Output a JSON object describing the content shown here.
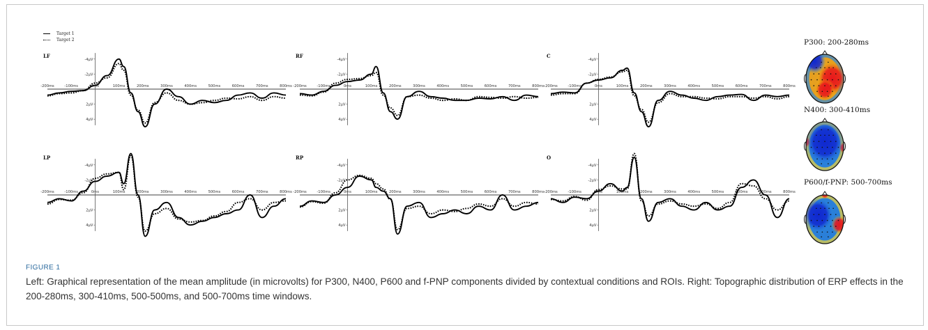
{
  "legend": {
    "entries": [
      "Target 1",
      "Target 2"
    ]
  },
  "chart_data": [
    {
      "type": "line",
      "panel": "LF",
      "x_unit": "ms",
      "xlim": [
        -200,
        800
      ],
      "y_unit": "µV",
      "ylim": [
        -4,
        4
      ],
      "y_inverted": true,
      "x_ticks": [
        "-200ms",
        "-100ms",
        "0ms",
        "100ms",
        "200ms",
        "300ms",
        "400ms",
        "500ms",
        "600ms",
        "700ms",
        "800ms"
      ],
      "y_ticks": [
        "-4µV",
        "-2µV",
        "2µV",
        "4µV"
      ],
      "x": [
        -200,
        -150,
        -100,
        -50,
        0,
        50,
        100,
        120,
        150,
        180,
        210,
        250,
        300,
        350,
        400,
        450,
        500,
        550,
        600,
        650,
        700,
        750,
        800
      ],
      "series": [
        {
          "name": "Target 1",
          "values": [
            0.8,
            0.5,
            0.3,
            0.2,
            -0.5,
            -1.8,
            -4.0,
            -3.0,
            0.5,
            3.0,
            5.0,
            2.0,
            0.0,
            1.0,
            2.0,
            1.5,
            1.8,
            1.5,
            0.8,
            0.5,
            1.2,
            0.5,
            0.8
          ]
        },
        {
          "name": "Target 2",
          "values": [
            0.9,
            0.6,
            0.5,
            0.2,
            -0.8,
            -1.5,
            -3.4,
            -2.5,
            0.8,
            2.8,
            4.5,
            1.8,
            0.5,
            1.5,
            2.0,
            1.8,
            1.5,
            1.2,
            1.3,
            1.0,
            1.5,
            1.0,
            1.2
          ]
        }
      ]
    },
    {
      "type": "line",
      "panel": "RF",
      "x_unit": "ms",
      "xlim": [
        -200,
        800
      ],
      "y_unit": "µV",
      "ylim": [
        -4,
        4
      ],
      "y_inverted": true,
      "x_ticks": [
        "-200ms",
        "-100ms",
        "0ms",
        "100ms",
        "200ms",
        "300ms",
        "400ms",
        "500ms",
        "600ms",
        "700ms",
        "800ms"
      ],
      "y_ticks": [
        "-4µV",
        "-2µV",
        "2µV",
        "4µV"
      ],
      "x": [
        -200,
        -150,
        -100,
        -50,
        0,
        50,
        100,
        120,
        150,
        180,
        210,
        250,
        300,
        350,
        400,
        450,
        500,
        550,
        600,
        650,
        700,
        750,
        800
      ],
      "series": [
        {
          "name": "Target 1",
          "values": [
            0.6,
            0.8,
            0.3,
            -0.5,
            -1.0,
            -1.2,
            -2.0,
            -3.0,
            0.5,
            3.0,
            4.0,
            1.0,
            0.3,
            1.0,
            1.2,
            1.5,
            1.5,
            1.2,
            1.3,
            1.0,
            1.5,
            0.8,
            1.0
          ]
        },
        {
          "name": "Target 2",
          "values": [
            0.8,
            0.9,
            0.4,
            -0.8,
            -1.3,
            -1.4,
            -1.8,
            -2.2,
            0.8,
            2.5,
            3.5,
            1.0,
            0.8,
            1.2,
            1.5,
            1.3,
            1.5,
            1.0,
            1.1,
            1.2,
            1.0,
            1.2,
            1.1
          ]
        }
      ]
    },
    {
      "type": "line",
      "panel": "C",
      "x_unit": "ms",
      "xlim": [
        -200,
        800
      ],
      "y_unit": "µV",
      "ylim": [
        -4,
        4
      ],
      "y_inverted": true,
      "x_ticks": [
        "-200ms",
        "-100ms",
        "0ms",
        "100ms",
        "200ms",
        "300ms",
        "400ms",
        "500ms",
        "600ms",
        "700ms",
        "800ms"
      ],
      "y_ticks": [
        "-4µV",
        "-2µV",
        "2µV",
        "4µV"
      ],
      "x": [
        -200,
        -150,
        -100,
        -50,
        0,
        50,
        100,
        120,
        150,
        180,
        210,
        250,
        300,
        350,
        400,
        450,
        500,
        550,
        600,
        650,
        700,
        750,
        800
      ],
      "series": [
        {
          "name": "Target 1",
          "values": [
            0.6,
            0.4,
            0.5,
            -0.8,
            -1.2,
            -1.5,
            -2.5,
            -2.8,
            0.5,
            3.0,
            5.0,
            1.5,
            0.3,
            0.8,
            1.2,
            1.5,
            1.0,
            0.8,
            0.7,
            1.5,
            0.8,
            1.0,
            0.8
          ]
        },
        {
          "name": "Target 2",
          "values": [
            0.8,
            0.6,
            0.6,
            -0.8,
            -1.3,
            -1.6,
            -2.3,
            -2.5,
            0.9,
            2.7,
            4.4,
            1.8,
            0.6,
            1.0,
            1.0,
            1.2,
            1.3,
            1.0,
            1.0,
            1.2,
            1.0,
            1.3,
            1.0
          ]
        }
      ]
    },
    {
      "type": "line",
      "panel": "LP",
      "x_unit": "ms",
      "xlim": [
        -200,
        800
      ],
      "y_unit": "µV",
      "ylim": [
        -4,
        4
      ],
      "y_inverted": true,
      "x_ticks": [
        "-200ms",
        "-100ms",
        "0ms",
        "100ms",
        "200ms",
        "300ms",
        "400ms",
        "500ms",
        "600ms",
        "700ms",
        "800ms"
      ],
      "y_ticks": [
        "-4µV",
        "-2µV",
        "2µV",
        "4µV"
      ],
      "x": [
        -200,
        -150,
        -100,
        -50,
        0,
        50,
        100,
        120,
        150,
        180,
        210,
        250,
        300,
        350,
        400,
        450,
        500,
        550,
        600,
        650,
        700,
        750,
        800
      ],
      "series": [
        {
          "name": "Target 1",
          "values": [
            1.0,
            0.5,
            0.8,
            -0.5,
            -1.8,
            -2.5,
            -3.0,
            -1.5,
            -5.5,
            0.0,
            5.5,
            2.0,
            1.0,
            3.0,
            4.0,
            3.5,
            3.0,
            2.5,
            2.0,
            0.0,
            3.0,
            1.5,
            0.5
          ]
        },
        {
          "name": "Target 2",
          "values": [
            1.2,
            0.6,
            0.7,
            -0.3,
            -2.2,
            -2.8,
            -3.0,
            -0.7,
            -5.2,
            0.3,
            4.8,
            2.5,
            1.8,
            3.2,
            3.6,
            3.4,
            2.8,
            2.2,
            1.0,
            0.5,
            2.0,
            1.0,
            0.8
          ]
        }
      ]
    },
    {
      "type": "line",
      "panel": "RP",
      "x_unit": "ms",
      "xlim": [
        -200,
        800
      ],
      "y_unit": "µV",
      "ylim": [
        -4,
        4
      ],
      "y_inverted": true,
      "x_ticks": [
        "-200ms",
        "-100ms",
        "0ms",
        "100ms",
        "200ms",
        "300ms",
        "400ms",
        "500ms",
        "600ms",
        "700ms",
        "800ms"
      ],
      "y_ticks": [
        "-4µV",
        "-2µV",
        "2µV",
        "4µV"
      ],
      "x": [
        -200,
        -150,
        -100,
        -50,
        0,
        50,
        100,
        120,
        150,
        180,
        210,
        250,
        300,
        350,
        400,
        450,
        500,
        550,
        600,
        650,
        700,
        750,
        800
      ],
      "series": [
        {
          "name": "Target 1",
          "values": [
            1.5,
            0.8,
            1.0,
            0.0,
            -1.0,
            -2.5,
            -2.0,
            -1.0,
            -0.5,
            0.5,
            5.2,
            1.5,
            1.0,
            3.0,
            2.5,
            2.0,
            2.5,
            1.5,
            2.0,
            0.0,
            2.0,
            1.5,
            1.0
          ]
        },
        {
          "name": "Target 2",
          "values": [
            1.6,
            0.9,
            1.1,
            -0.3,
            -2.0,
            -2.6,
            -2.2,
            -1.5,
            -0.8,
            0.6,
            4.6,
            1.8,
            1.5,
            2.5,
            2.0,
            2.2,
            1.8,
            1.2,
            1.5,
            0.5,
            1.5,
            1.0,
            1.2
          ]
        }
      ]
    },
    {
      "type": "line",
      "panel": "O",
      "x_unit": "ms",
      "xlim": [
        -200,
        800
      ],
      "y_unit": "µV",
      "ylim": [
        -4,
        4
      ],
      "y_inverted": true,
      "x_ticks": [
        "-200ms",
        "-100ms",
        "0ms",
        "100ms",
        "200ms",
        "300ms",
        "400ms",
        "500ms",
        "600ms",
        "700ms",
        "800ms"
      ],
      "y_ticks": [
        "-4µV",
        "-2µV",
        "2µV",
        "4µV"
      ],
      "x": [
        -200,
        -150,
        -100,
        -50,
        0,
        50,
        100,
        120,
        150,
        180,
        210,
        250,
        300,
        350,
        400,
        450,
        500,
        550,
        600,
        650,
        700,
        750,
        800
      ],
      "series": [
        {
          "name": "Target 1",
          "values": [
            0.5,
            1.0,
            0.3,
            0.5,
            -0.5,
            -1.5,
            -0.5,
            -1.0,
            -5.0,
            0.5,
            3.5,
            1.0,
            0.5,
            1.5,
            2.0,
            1.0,
            2.0,
            1.5,
            -1.0,
            -2.0,
            0.0,
            3.0,
            0.5
          ]
        },
        {
          "name": "Target 2",
          "values": [
            0.6,
            0.8,
            0.2,
            0.7,
            -0.7,
            -1.2,
            -0.8,
            -0.8,
            -5.5,
            0.8,
            2.8,
            1.2,
            0.8,
            1.2,
            1.5,
            1.2,
            1.8,
            1.0,
            -1.5,
            -1.2,
            0.5,
            2.0,
            0.8
          ]
        }
      ]
    }
  ],
  "topomaps": [
    {
      "title": "P300: 200-280ms",
      "dominant": "red",
      "hot": [
        [
          0.66,
          0.52,
          0.34
        ],
        [
          0.5,
          0.72,
          0.22
        ]
      ],
      "cold": [
        [
          0.28,
          0.22,
          0.24
        ]
      ]
    },
    {
      "title": "N400: 300-410ms",
      "dominant": "blue",
      "hot": [
        [
          0.08,
          0.45,
          0.12
        ],
        [
          0.92,
          0.55,
          0.12
        ]
      ],
      "cold": [
        [
          0.5,
          0.45,
          0.45
        ]
      ]
    },
    {
      "title": "P600/f-PNP: 500-700ms",
      "dominant": "blue",
      "hot": [
        [
          0.82,
          0.62,
          0.18
        ],
        [
          0.5,
          0.08,
          0.1
        ]
      ],
      "cold": [
        [
          0.35,
          0.45,
          0.35
        ]
      ]
    }
  ],
  "colors": {
    "trace": "#000000",
    "caption_label": "#2b6a9e",
    "caption_text": "#333333"
  },
  "figure_label": "FIGURE 1",
  "caption": "Left: Graphical representation of the mean amplitude (in microvolts) for P300, N400, P600 and f-PNP components divided by contextual conditions and ROIs. Right: Topographic distribution of ERP effects in the 200-280ms, 300-410ms, 500-500ms, and 500-700ms time windows."
}
